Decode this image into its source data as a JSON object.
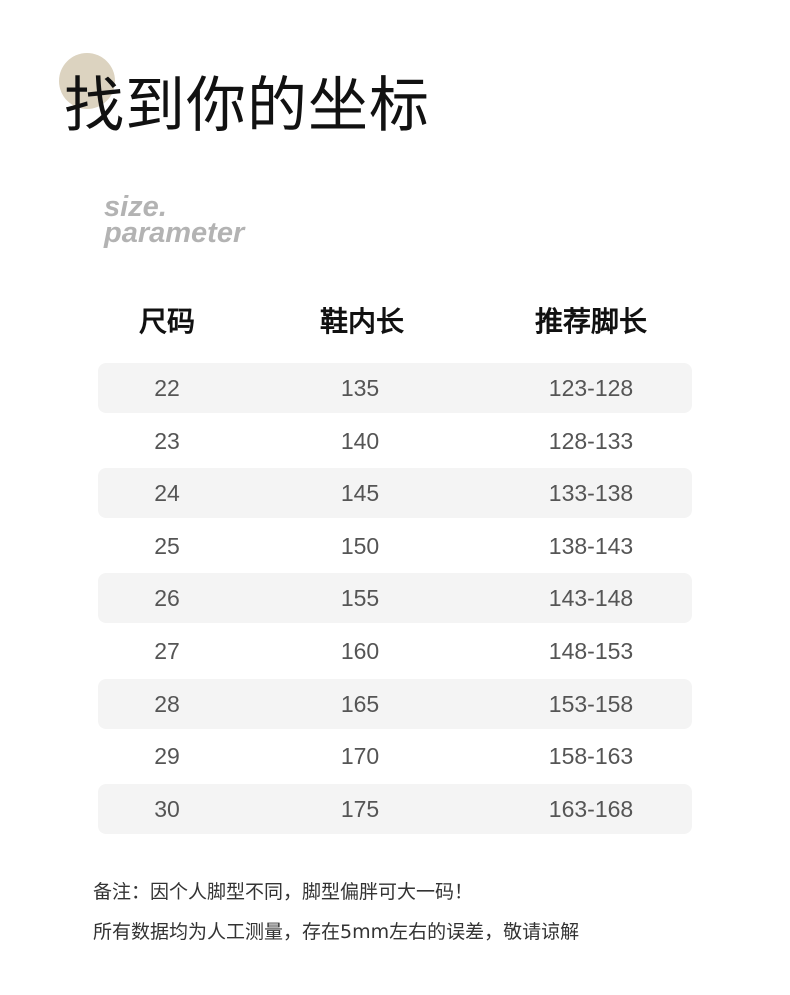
{
  "title": "找到你的坐标",
  "subtitle_line1": "size.",
  "subtitle_line2": "parameter",
  "accent_color": "#dcd3c0",
  "table": {
    "headers": [
      "尺码",
      "鞋内长",
      "推荐脚长"
    ],
    "rows": [
      [
        "22",
        "135",
        "123-128"
      ],
      [
        "23",
        "140",
        "128-133"
      ],
      [
        "24",
        "145",
        "133-138"
      ],
      [
        "25",
        "150",
        "138-143"
      ],
      [
        "26",
        "155",
        "143-148"
      ],
      [
        "27",
        "160",
        "148-153"
      ],
      [
        "28",
        "165",
        "153-158"
      ],
      [
        "29",
        "170",
        "158-163"
      ],
      [
        "30",
        "175",
        "163-168"
      ]
    ]
  },
  "notes": [
    "备注：因个人脚型不同，脚型偏胖可大一码！",
    "所有数据均为人工测量，存在5mm左右的误差，敬请谅解"
  ]
}
